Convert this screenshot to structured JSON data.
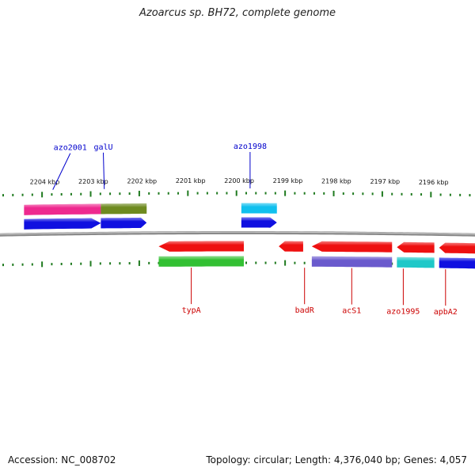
{
  "title": "Azoarcus sp. BH72, complete genome",
  "footer": {
    "accession": "Accession: NC_008702",
    "summary": "Topology: circular; Length: 4,376,040 bp; Genes: 4,057"
  },
  "colors": {
    "backbone": "#8a8a8a",
    "tick": "#1f7a1f",
    "upper_label": "#0000cc",
    "lower_label": "#cc0000"
  },
  "scale": {
    "unit": "kbp",
    "labels": [
      "2204 kbp",
      "2203 kbp",
      "2202 kbp",
      "2201 kbp",
      "2200 kbp",
      "2199 kbp",
      "2198 kbp",
      "2197 kbp",
      "2196 kbp"
    ]
  },
  "features": [
    {
      "id": "upper-pink",
      "start": 2204.62,
      "end": 2203.04,
      "strand": "+",
      "lane": 1,
      "color": "#ee2a90"
    },
    {
      "id": "upper-olive",
      "start": 2203.04,
      "end": 2202.1,
      "strand": "+",
      "lane": 1,
      "color": "#6e8a1f"
    },
    {
      "id": "upper-blue-left",
      "start": 2204.62,
      "end": 2203.04,
      "strand": "+",
      "lane": 2,
      "color": "#1010e0",
      "arrow": true
    },
    {
      "id": "upper-blue-galU",
      "start": 2203.04,
      "end": 2202.1,
      "strand": "+",
      "lane": 2,
      "color": "#1010e0",
      "arrow": true
    },
    {
      "id": "upper-cyan",
      "start": 2200.15,
      "end": 2199.42,
      "strand": "+",
      "lane": 1,
      "color": "#10c0ee"
    },
    {
      "id": "upper-blue-azo1998",
      "start": 2200.15,
      "end": 2199.42,
      "strand": "+",
      "lane": 2,
      "color": "#1010e0",
      "arrow": true
    },
    {
      "id": "lower-red-typA",
      "start": 2201.85,
      "end": 2200.1,
      "strand": "-",
      "lane": 1,
      "color": "#ee1010",
      "arrow": true
    },
    {
      "id": "lower-green-typA",
      "start": 2201.85,
      "end": 2200.1,
      "strand": "-",
      "lane": 2,
      "color": "#33c033"
    },
    {
      "id": "lower-red-badR",
      "start": 2199.38,
      "end": 2198.88,
      "strand": "-",
      "lane": 1,
      "color": "#ee1010",
      "arrow": true
    },
    {
      "id": "lower-red-acS1",
      "start": 2198.7,
      "end": 2197.05,
      "strand": "-",
      "lane": 1,
      "color": "#ee1010",
      "arrow": true
    },
    {
      "id": "lower-purple-acS1",
      "start": 2198.7,
      "end": 2197.05,
      "strand": "-",
      "lane": 2,
      "color": "#6a5acd"
    },
    {
      "id": "lower-red-azo1995",
      "start": 2196.95,
      "end": 2196.18,
      "strand": "-",
      "lane": 1,
      "color": "#ee1010",
      "arrow": true
    },
    {
      "id": "lower-cyan-azo1995",
      "start": 2196.95,
      "end": 2196.18,
      "strand": "-",
      "lane": 2,
      "color": "#20c8c8"
    },
    {
      "id": "lower-red-apbA2",
      "start": 2196.08,
      "end": 2195.1,
      "strand": "-",
      "lane": 1,
      "color": "#ee1010",
      "arrow": true
    },
    {
      "id": "lower-blue-apbA2",
      "start": 2196.08,
      "end": 2195.1,
      "strand": "-",
      "lane": 2,
      "color": "#1010e0"
    }
  ],
  "gene_labels": [
    {
      "name": "azo2001",
      "strand": "+",
      "position": 2204.03,
      "label_offset": -0.36
    },
    {
      "name": "galU",
      "strand": "+",
      "position": 2202.97,
      "label_offset": 0.02
    },
    {
      "name": "azo1998",
      "strand": "+",
      "position": 2199.97,
      "label_offset": 0.0
    },
    {
      "name": "typA",
      "strand": "-",
      "position": 2201.18,
      "label_offset": 0.0
    },
    {
      "name": "badR",
      "strand": "-",
      "position": 2198.85,
      "label_offset": 0.0
    },
    {
      "name": "acS1",
      "strand": "-",
      "position": 2197.88,
      "label_offset": 0.0
    },
    {
      "name": "azo1995",
      "strand": "-",
      "position": 2196.82,
      "label_offset": 0.0
    },
    {
      "name": "apbA2",
      "strand": "-",
      "position": 2195.95,
      "label_offset": 0.0
    }
  ]
}
